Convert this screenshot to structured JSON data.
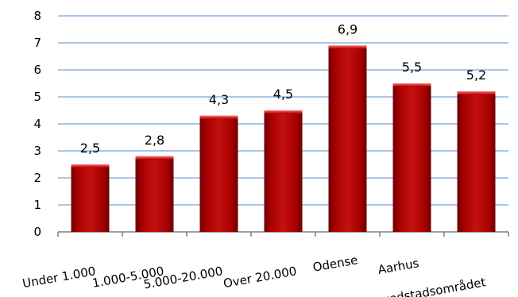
{
  "chart_data": {
    "type": "bar",
    "categories": [
      "Under 1.000",
      "1.000-5.000",
      "5.000-20.000",
      "Over 20.000",
      "Odense",
      "Aarhus",
      "Hovedstadsområdet"
    ],
    "values": [
      2.5,
      2.8,
      4.3,
      4.5,
      6.9,
      5.5,
      5.2
    ],
    "value_labels": [
      "2,5",
      "2,8",
      "4,3",
      "4,5",
      "6,9",
      "5,5",
      "5,2"
    ],
    "title": "",
    "xlabel": "",
    "ylabel": "",
    "ylim": [
      0,
      8
    ],
    "yticks": [
      "0",
      "1",
      "2",
      "3",
      "4",
      "5",
      "6",
      "7",
      "8"
    ],
    "grid": true,
    "bar_color": "#b00000",
    "grid_color": "#8fb4e3"
  }
}
